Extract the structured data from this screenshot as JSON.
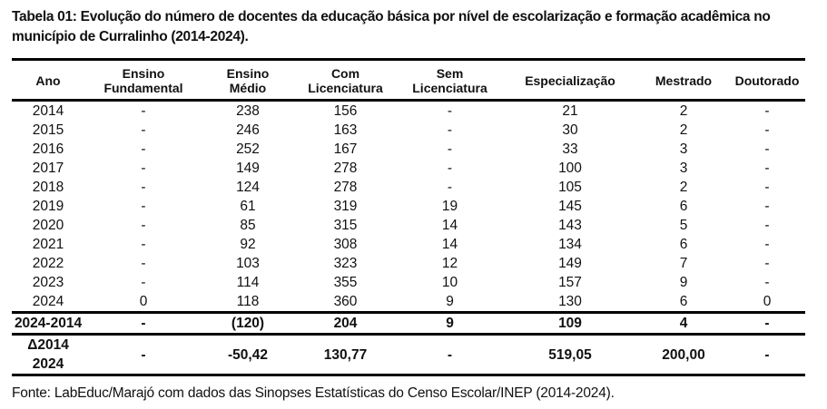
{
  "title": "Tabela 01: Evolução do número de docentes da educação básica por nível de escolarização e formação acadêmica no município de Curralinho (2014-2024).",
  "table": {
    "headers": [
      {
        "line1": "Ano",
        "line2": ""
      },
      {
        "line1": "Ensino",
        "line2": "Fundamental"
      },
      {
        "line1": "Ensino",
        "line2": "Médio"
      },
      {
        "line1": "Com",
        "line2": "Licenciatura"
      },
      {
        "line1": "Sem",
        "line2": "Licenciatura"
      },
      {
        "line1": "Especialização",
        "line2": ""
      },
      {
        "line1": "Mestrado",
        "line2": ""
      },
      {
        "line1": "Doutorado",
        "line2": ""
      }
    ],
    "rows": [
      [
        "2014",
        "-",
        "238",
        "156",
        "-",
        "21",
        "2",
        "-"
      ],
      [
        "2015",
        "-",
        "246",
        "163",
        "-",
        "30",
        "2",
        "-"
      ],
      [
        "2016",
        "-",
        "252",
        "167",
        "-",
        "33",
        "3",
        "-"
      ],
      [
        "2017",
        "-",
        "149",
        "278",
        "-",
        "100",
        "3",
        "-"
      ],
      [
        "2018",
        "-",
        "124",
        "278",
        "-",
        "105",
        "2",
        "-"
      ],
      [
        "2019",
        "-",
        "61",
        "319",
        "19",
        "145",
        "6",
        "-"
      ],
      [
        "2020",
        "-",
        "85",
        "315",
        "14",
        "143",
        "5",
        "-"
      ],
      [
        "2021",
        "-",
        "92",
        "308",
        "14",
        "134",
        "6",
        "-"
      ],
      [
        "2022",
        "-",
        "103",
        "323",
        "12",
        "149",
        "7",
        "-"
      ],
      [
        "2023",
        "-",
        "114",
        "355",
        "10",
        "157",
        "9",
        "-"
      ],
      [
        "2024",
        "0",
        "118",
        "360",
        "9",
        "130",
        "6",
        "0"
      ]
    ],
    "summary_rows": [
      [
        "2024-2014",
        "-",
        "(120)",
        "204",
        "9",
        "109",
        "4",
        "-"
      ],
      [
        "Δ2014 2024",
        "-",
        "-50,42",
        "130,77",
        "-",
        "519,05",
        "200,00",
        "-"
      ]
    ]
  },
  "footer": "Fonte: LabEduc/Marajó com dados das Sinopses Estatísticas do Censo Escolar/INEP (2014-2024)."
}
